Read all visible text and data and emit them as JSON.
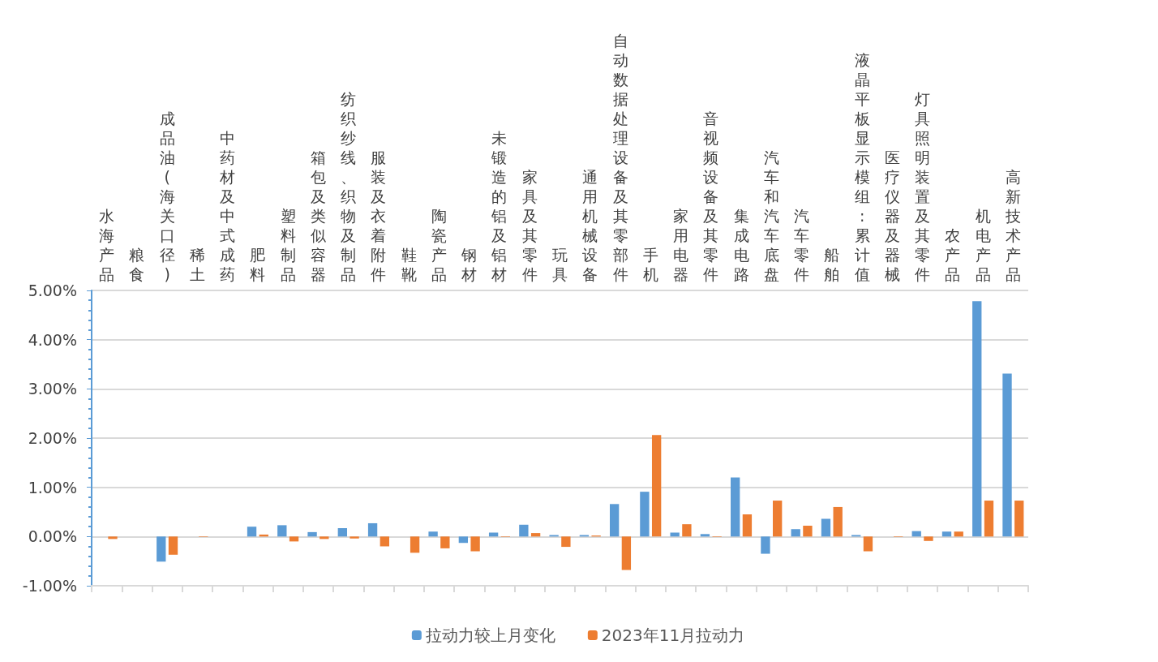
{
  "chart_data": {
    "type": "bar",
    "categories": [
      "水海产品",
      "粮食",
      "成品油(海关口径)",
      "稀土",
      "中药材及中式成药",
      "肥料",
      "塑料制品",
      "箱包及类似容器",
      "纺织纱线、织物及制品",
      "服装及衣着附件",
      "鞋靴",
      "陶瓷产品",
      "钢材",
      "未锻造的铝及铝材",
      "家具及其零件",
      "玩具",
      "通用机械设备",
      "自动数据处理设备及其零部件",
      "手机",
      "家用电器",
      "音视频设备及其零件",
      "集成电路",
      "汽车和汽车底盘",
      "汽车零件",
      "船舶",
      "液晶平板显示模组:累计值",
      "医疗仪器及器械",
      "灯具照明装置及其零件",
      "农产品",
      "机电产品",
      "高新技术产品"
    ],
    "series": [
      {
        "name": "拉动力较上月变化",
        "color": "#5b9bd5",
        "values": [
          0,
          0,
          -0.51,
          0,
          0,
          0.2,
          0.23,
          0.09,
          0.17,
          0.27,
          0,
          0.1,
          -0.13,
          0.08,
          0.24,
          0.03,
          0.03,
          0.66,
          0.91,
          0.08,
          0.05,
          1.2,
          -0.35,
          0.15,
          0.36,
          0.03,
          0,
          0.11,
          0.1,
          4.78,
          3.31
        ]
      },
      {
        "name": "2023年11月拉动力",
        "color": "#ed7d31",
        "values": [
          -0.05,
          0,
          -0.37,
          -0.01,
          0,
          0.04,
          -0.1,
          -0.05,
          -0.04,
          -0.2,
          -0.33,
          -0.24,
          -0.3,
          -0.01,
          0.07,
          -0.21,
          0.02,
          -0.68,
          2.06,
          0.25,
          -0.01,
          0.45,
          0.73,
          0.22,
          0.6,
          -0.3,
          -0.01,
          -0.09,
          0.1,
          0.73,
          0.73
        ]
      }
    ],
    "ylim": [
      -1,
      5
    ],
    "yticks": [
      {
        "value": -1,
        "label": "-1.00%"
      },
      {
        "value": 0,
        "label": "0.00%"
      },
      {
        "value": 1,
        "label": "1.00%"
      },
      {
        "value": 2,
        "label": "2.00%"
      },
      {
        "value": 3,
        "label": "3.00%"
      },
      {
        "value": 4,
        "label": "4.00%"
      },
      {
        "value": 5,
        "label": "5.00%"
      }
    ],
    "grid": "y",
    "legend": "bottom"
  }
}
